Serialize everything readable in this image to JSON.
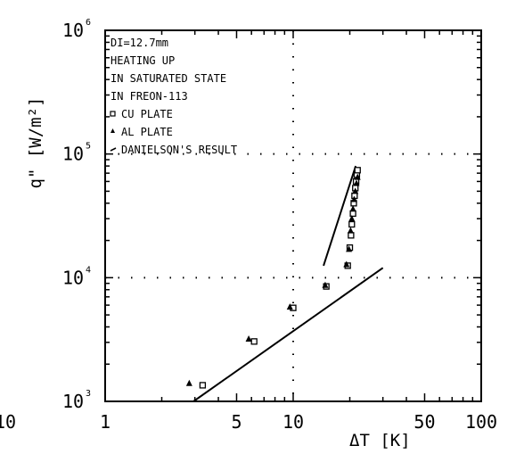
{
  "chart_data": {
    "type": "scatter",
    "x_scale": "log",
    "y_scale": "log",
    "xlim": [
      1,
      100
    ],
    "ylim": [
      1000,
      1000000
    ],
    "grid": "dotted lines at x=10 and y=1e4, 1e5",
    "xlabel": "ΔT [K]",
    "ylabel": "q\" [W/m²]",
    "x_ticks": [
      {
        "v": 1,
        "label": "1"
      },
      {
        "v": 5,
        "label": "5"
      },
      {
        "v": 10,
        "label": "10"
      },
      {
        "v": 50,
        "label": "50"
      },
      {
        "v": 100,
        "label": "100"
      }
    ],
    "x_edge_label": "10",
    "y_ticks": [
      {
        "v": 1000,
        "base": "10",
        "exp": "3"
      },
      {
        "v": 10000,
        "base": "10",
        "exp": "4"
      },
      {
        "v": 100000,
        "base": "10",
        "exp": "5"
      },
      {
        "v": 1000000,
        "base": "10",
        "exp": "6"
      }
    ],
    "legend": {
      "placement": "top-left",
      "lines": [
        {
          "text": "DI=12.7mm",
          "symbol": ""
        },
        {
          "text": "HEATING UP",
          "symbol": ""
        },
        {
          "text": "IN SATURATED STATE",
          "symbol": ""
        },
        {
          "text": "IN FREON-113",
          "symbol": ""
        },
        {
          "text": "CU PLATE",
          "symbol": "square"
        },
        {
          "text": "AL PLATE",
          "symbol": "triangle"
        },
        {
          "text": "DANIELSON'S RESULT",
          "symbol": "line"
        }
      ]
    },
    "series": [
      {
        "name": "CU PLATE",
        "marker": "square",
        "points": [
          {
            "x": 3.3,
            "y": 1350
          },
          {
            "x": 6.2,
            "y": 3050
          },
          {
            "x": 10.0,
            "y": 5700
          },
          {
            "x": 15.0,
            "y": 8500
          },
          {
            "x": 19.5,
            "y": 12500
          },
          {
            "x": 20.0,
            "y": 17500
          },
          {
            "x": 20.3,
            "y": 22000
          },
          {
            "x": 20.5,
            "y": 27000
          },
          {
            "x": 20.8,
            "y": 33000
          },
          {
            "x": 21.0,
            "y": 40000
          },
          {
            "x": 21.2,
            "y": 46000
          },
          {
            "x": 21.4,
            "y": 53000
          },
          {
            "x": 21.6,
            "y": 60000
          },
          {
            "x": 21.8,
            "y": 68000
          },
          {
            "x": 22.0,
            "y": 74000
          }
        ]
      },
      {
        "name": "AL PLATE",
        "marker": "triangle",
        "points": [
          {
            "x": 2.8,
            "y": 1400
          },
          {
            "x": 5.8,
            "y": 3200
          },
          {
            "x": 9.6,
            "y": 5800
          },
          {
            "x": 14.8,
            "y": 8700
          },
          {
            "x": 19.2,
            "y": 12800
          },
          {
            "x": 19.8,
            "y": 17000
          },
          {
            "x": 20.2,
            "y": 24000
          },
          {
            "x": 20.5,
            "y": 30000
          },
          {
            "x": 20.8,
            "y": 36000
          },
          {
            "x": 21.1,
            "y": 43000
          },
          {
            "x": 21.4,
            "y": 50000
          },
          {
            "x": 21.7,
            "y": 58000
          },
          {
            "x": 22.0,
            "y": 65000
          }
        ]
      },
      {
        "name": "DANIELSON'S RESULT",
        "marker": "line",
        "segments": [
          [
            {
              "x": 2.95,
              "y": 1000
            },
            {
              "x": 30.0,
              "y": 12000
            }
          ],
          [
            {
              "x": 14.5,
              "y": 12500
            },
            {
              "x": 21.5,
              "y": 80000
            }
          ]
        ]
      }
    ]
  }
}
